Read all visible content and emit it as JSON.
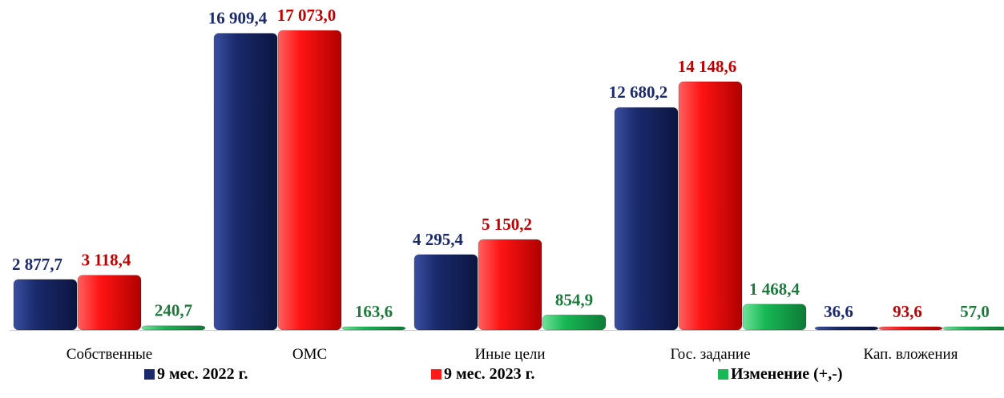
{
  "chart_data": {
    "type": "bar",
    "categories": [
      "Собственные",
      "ОМС",
      "Иные цели",
      "Гос. задание",
      "Кап. вложения"
    ],
    "series": [
      {
        "name": "9 мес. 2022 г.",
        "color": "#1a2a6c",
        "values": [
          2877.7,
          16909.4,
          4295.4,
          12680.2,
          36.6
        ],
        "labels": [
          "2 877,7",
          "16 909,4",
          "4 295,4",
          "12 680,2",
          "36,6"
        ]
      },
      {
        "name": "9 мес. 2023 г.",
        "color": "#ff1a1a",
        "values": [
          3118.4,
          17073.0,
          5150.2,
          14148.6,
          93.6
        ],
        "labels": [
          "3 118,4",
          "17 073,0",
          "5 150,2",
          "14 148,6",
          "93,6"
        ]
      },
      {
        "name": "Изменение (+,-)",
        "color": "#18b855",
        "values": [
          240.7,
          163.6,
          854.9,
          1468.4,
          57.0
        ],
        "labels": [
          "240,7",
          "163,6",
          "854,9",
          "1 468,4",
          "57,0"
        ]
      }
    ],
    "label_colors": [
      "#1a2a6c",
      "#c00000",
      "#1e7a3c"
    ],
    "grid": false,
    "legend_position": "bottom"
  }
}
